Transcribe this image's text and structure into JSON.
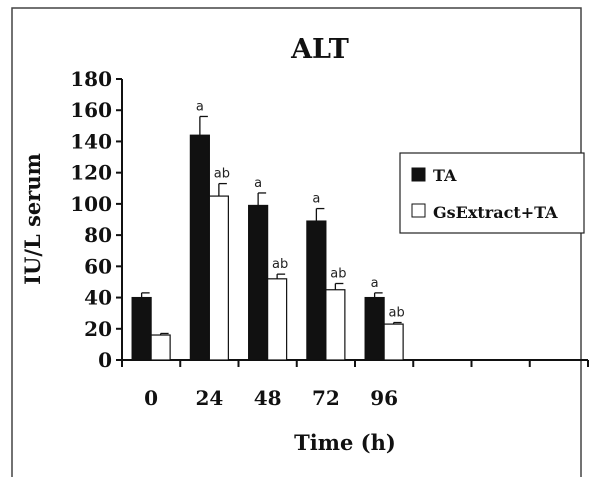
{
  "chart_data": {
    "type": "bar",
    "title": "ALT",
    "xlabel": "Time (h)",
    "ylabel": "IU/L serum",
    "categories": [
      "0",
      "24",
      "48",
      "72",
      "96",
      "",
      "",
      ""
    ],
    "ylim": [
      0,
      180
    ],
    "yticks": [
      0,
      20,
      40,
      60,
      80,
      100,
      120,
      140,
      160,
      180
    ],
    "grid": false,
    "legend_position": "right",
    "series": [
      {
        "name": "TA",
        "color": "#111111",
        "values": [
          40,
          144,
          99,
          89,
          40,
          null,
          null,
          null
        ],
        "errors": [
          3,
          12,
          8,
          8,
          3,
          null,
          null,
          null
        ],
        "labels": [
          "",
          "a",
          "a",
          "a",
          "a",
          "",
          "",
          ""
        ]
      },
      {
        "name": "GsExtract+TA",
        "color": "#ffffff",
        "values": [
          16,
          105,
          52,
          45,
          23,
          null,
          null,
          null
        ],
        "errors": [
          1,
          8,
          3,
          4,
          1,
          null,
          null,
          null
        ],
        "labels": [
          "",
          "ab",
          "ab",
          "ab",
          "ab",
          "",
          "",
          ""
        ]
      }
    ]
  }
}
